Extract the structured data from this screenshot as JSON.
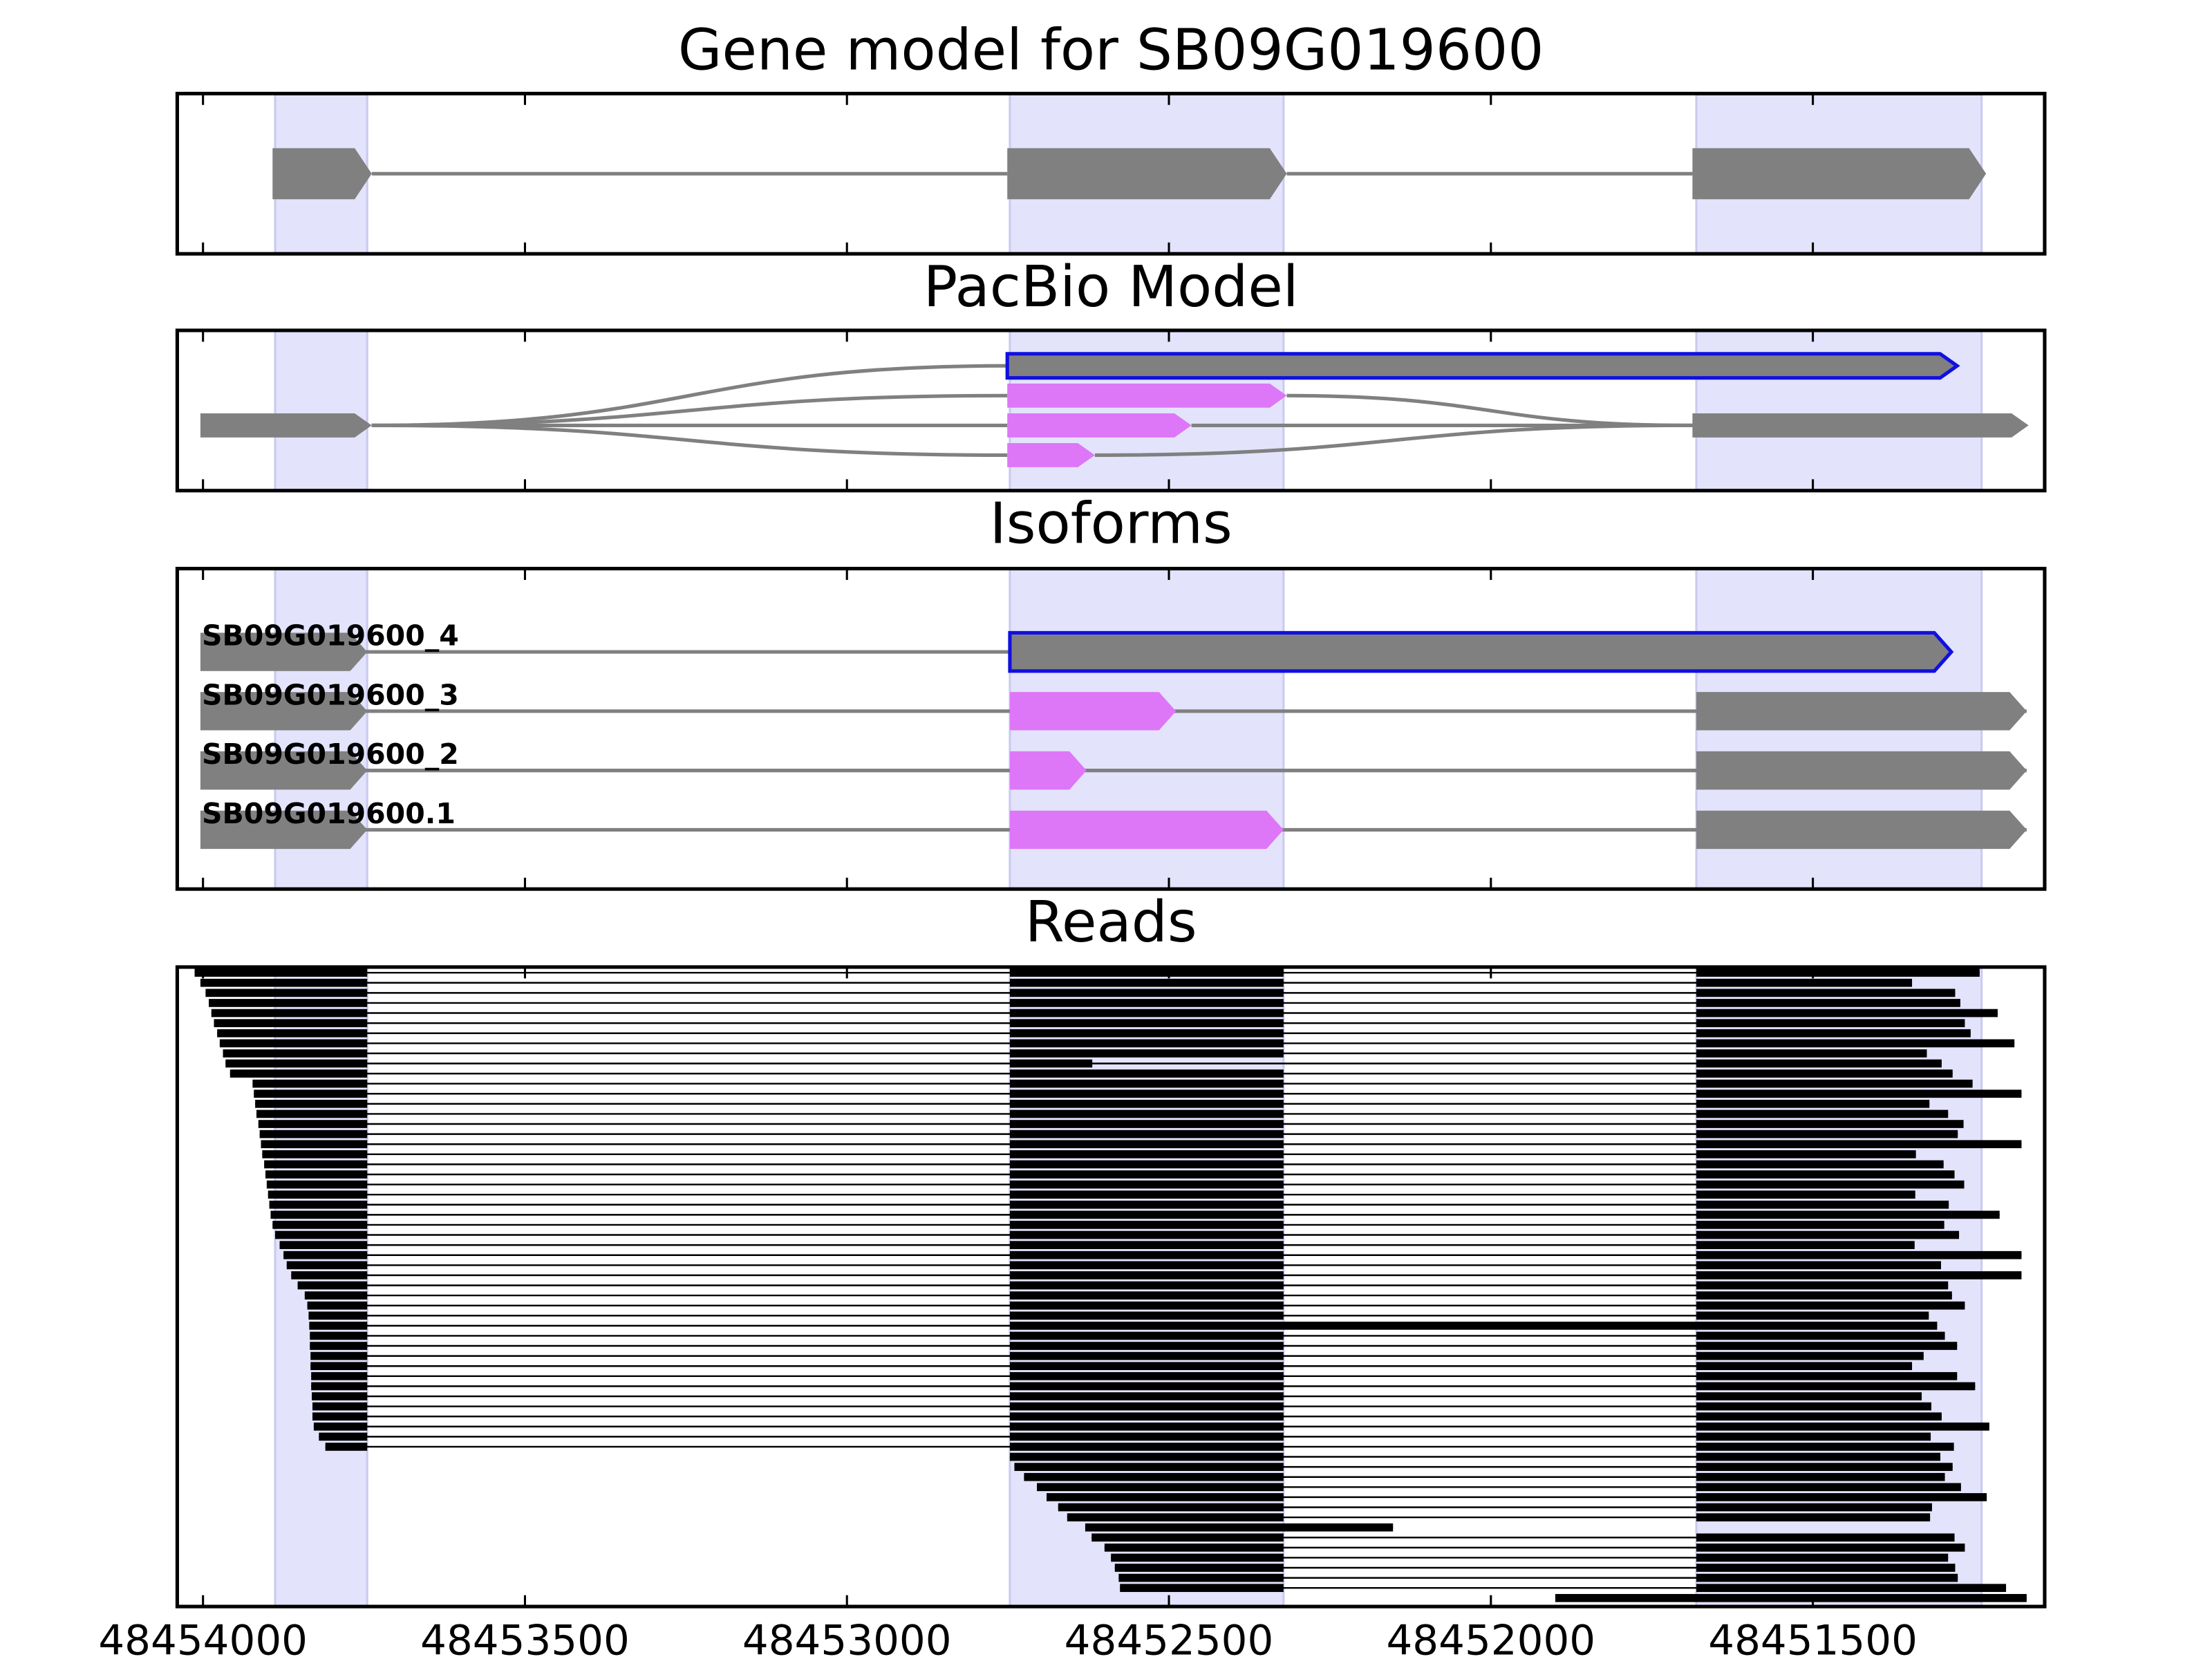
{
  "chart_data": [
    {
      "type": "gene-model",
      "title": "Gene model for SB09G019600",
      "xlim": [
        48454040,
        48451140
      ],
      "xticks": [
        48454000,
        48453500,
        48453000,
        48452500,
        48452000,
        48451500
      ],
      "shaded": [
        [
          48453888,
          48453745
        ],
        [
          48452747,
          48452322
        ],
        [
          48451681,
          48451238
        ]
      ],
      "transcripts": [
        {
          "exons": [
            [
              48453892,
              48453738
            ],
            [
              48452751,
              48452317
            ],
            [
              48451687,
              48451231
            ]
          ],
          "colors": [
            "#808080",
            "#808080",
            "#808080"
          ],
          "outlines": [
            null,
            null,
            null
          ]
        }
      ]
    },
    {
      "type": "pacbio",
      "title": "PacBio Model",
      "xlim": [
        48454040,
        48451140
      ],
      "xticks": [
        48454000,
        48453500,
        48453000,
        48452500,
        48452000,
        48451500
      ],
      "shaded": [
        [
          48453888,
          48453745
        ],
        [
          48452747,
          48452322
        ],
        [
          48451681,
          48451238
        ]
      ],
      "transcripts": [
        {
          "exons": [
            [
              48454004,
              48453738
            ],
            [
              48452751,
              48451276
            ]
          ],
          "colors": [
            "#808080",
            "#808080"
          ],
          "outlines": [
            null,
            "#1010e0"
          ]
        },
        {
          "exons": [
            [
              48454004,
              48453738
            ],
            [
              48452751,
              48452317
            ],
            [
              48451687,
              48451165
            ]
          ],
          "colors": [
            "#808080",
            "#dd77f7",
            "#808080"
          ],
          "outlines": [
            null,
            null,
            null
          ]
        },
        {
          "exons": [
            [
              48454004,
              48453738
            ],
            [
              48452751,
              48452465
            ],
            [
              48451687,
              48451165
            ]
          ],
          "colors": [
            "#808080",
            "#dd77f7",
            "#808080"
          ],
          "outlines": [
            null,
            null,
            null
          ]
        },
        {
          "exons": [
            [
              48454004,
              48453738
            ],
            [
              48452751,
              48452615
            ],
            [
              48451687,
              48451165
            ]
          ],
          "colors": [
            "#808080",
            "#dd77f7",
            "#808080"
          ],
          "outlines": [
            null,
            null,
            null
          ]
        }
      ]
    },
    {
      "type": "isoforms",
      "title": "Isoforms",
      "xlim": [
        48454040,
        48451140
      ],
      "xticks": [
        48454000,
        48453500,
        48453000,
        48452500,
        48452000,
        48451500
      ],
      "shaded": [
        [
          48453888,
          48453745
        ],
        [
          48452747,
          48452322
        ],
        [
          48451681,
          48451238
        ]
      ],
      "transcripts": [
        {
          "name": "SB09G019600_4",
          "exons": [
            [
              48454004,
              48453745
            ],
            [
              48452747,
              48451285
            ]
          ],
          "colors": [
            "#808080",
            "#808080"
          ],
          "outlines": [
            null,
            "#1010e0"
          ]
        },
        {
          "name": "SB09G019600_3",
          "exons": [
            [
              48454004,
              48453745
            ],
            [
              48452747,
              48452489
            ],
            [
              48451681,
              48451168
            ]
          ],
          "colors": [
            "#808080",
            "#dd77f7",
            "#808080"
          ],
          "outlines": [
            null,
            null,
            null
          ]
        },
        {
          "name": "SB09G019600_2",
          "exons": [
            [
              48454004,
              48453745
            ],
            [
              48452747,
              48452628
            ],
            [
              48451681,
              48451168
            ]
          ],
          "colors": [
            "#808080",
            "#dd77f7",
            "#808080"
          ],
          "outlines": [
            null,
            null,
            null
          ]
        },
        {
          "name": "SB09G019600.1",
          "exons": [
            [
              48454004,
              48453745
            ],
            [
              48452747,
              48452322
            ],
            [
              48451681,
              48451168
            ]
          ],
          "colors": [
            "#808080",
            "#dd77f7",
            "#808080"
          ],
          "outlines": [
            null,
            null,
            null
          ]
        }
      ]
    },
    {
      "type": "reads",
      "title": "Reads",
      "xlim": [
        48454040,
        48451140
      ],
      "xticks": [
        48454000,
        48453500,
        48453000,
        48452500,
        48452000,
        48451500
      ],
      "shaded": [
        [
          48453888,
          48453745
        ],
        [
          48452747,
          48452322
        ],
        [
          48451681,
          48451238
        ]
      ],
      "color": "#000000",
      "reads": [
        [
          48454013,
          48453745,
          48452747,
          48452322,
          48451681,
          48451241
        ],
        [
          48454004,
          48453745,
          48452747,
          48452322,
          48451681,
          48451346
        ],
        [
          48453996,
          48453745,
          48452747,
          48452322,
          48451681,
          48451279
        ],
        [
          48453991,
          48453745,
          48452747,
          48452322,
          48451681,
          48451271
        ],
        [
          48453987,
          48453745,
          48452747,
          48452322,
          48451681,
          48451213
        ],
        [
          48453983,
          48453745,
          48452747,
          48452322,
          48451681,
          48451264
        ],
        [
          48453978,
          48453745,
          48452747,
          48452322,
          48451681,
          48451255
        ],
        [
          48453974,
          48453745,
          48452747,
          48452322,
          48451681,
          48451187
        ],
        [
          48453969,
          48453745,
          48452747,
          48452322,
          48451681,
          48451323
        ],
        [
          48453965,
          48453745,
          48452747,
          48452619,
          48451681,
          48451300
        ],
        [
          48453958,
          48453745,
          48452747,
          48452322,
          48451681,
          48451283
        ],
        [
          48453923,
          48453745,
          48452747,
          48452322,
          48451681,
          48451252
        ],
        [
          48453921,
          48453745,
          48452747,
          48452322,
          48451681,
          48451176
        ],
        [
          48453919,
          48453745,
          48452747,
          48452322,
          48451681,
          48451319
        ],
        [
          48453917,
          48453745,
          48452747,
          48452322,
          48451681,
          48451290
        ],
        [
          48453914,
          48453745,
          48452747,
          48452322,
          48451681,
          48451266
        ],
        [
          48453912,
          48453745,
          48452747,
          48452322,
          48451681,
          48451275
        ],
        [
          48453910,
          48453745,
          48452747,
          48452322,
          48451681,
          48451176
        ],
        [
          48453908,
          48453745,
          48452747,
          48452322,
          48451681,
          48451340
        ],
        [
          48453905,
          48453745,
          48452747,
          48452322,
          48451681,
          48451297
        ],
        [
          48453903,
          48453745,
          48452747,
          48452322,
          48451681,
          48451280
        ],
        [
          48453901,
          48453745,
          48452747,
          48452322,
          48451681,
          48451265
        ],
        [
          48453899,
          48453745,
          48452747,
          48452322,
          48451681,
          48451341
        ],
        [
          48453897,
          48453745,
          48452747,
          48452322,
          48451681,
          48451289
        ],
        [
          48453895,
          48453745,
          48452747,
          48452322,
          48451681,
          48451210
        ],
        [
          48453892,
          48453745,
          48452747,
          48452322,
          48451681,
          48451296
        ],
        [
          48453888,
          48453745,
          48452747,
          48452322,
          48451681,
          48451273
        ],
        [
          48453881,
          48453745,
          48452747,
          48452322,
          48451681,
          48451342
        ],
        [
          48453875,
          48453745,
          48452747,
          48452322,
          48451681,
          48451176
        ],
        [
          48453870,
          48453745,
          48452747,
          48452322,
          48451681,
          48451301
        ],
        [
          48453863,
          48453745,
          48452747,
          48452322,
          48451681,
          48451176
        ],
        [
          48453853,
          48453745,
          48452747,
          48452322,
          48451681,
          48451290
        ],
        [
          48453842,
          48453745,
          48452747,
          48452322,
          48451681,
          48451284
        ],
        [
          48453838,
          48453745,
          48452747,
          48452322,
          48451681,
          48451264
        ],
        [
          48453836,
          48453745,
          48452747,
          48452322,
          48451681,
          48451320
        ],
        [
          48453835,
          48453745,
          48452747,
          48451307
        ],
        [
          48453834,
          48453745,
          48452747,
          48452322,
          48451681,
          48451295
        ],
        [
          48453834,
          48453745,
          48452747,
          48452322,
          48451681,
          48451276
        ],
        [
          48453833,
          48453745,
          48452747,
          48452322,
          48451681,
          48451328
        ],
        [
          48453833,
          48453745,
          48452747,
          48452322,
          48451681,
          48451346
        ],
        [
          48453832,
          48453745,
          48452747,
          48452322,
          48451681,
          48451276
        ],
        [
          48453832,
          48453745,
          48452747,
          48452322,
          48451681,
          48451248
        ],
        [
          48453831,
          48453745,
          48452747,
          48452322,
          48451681,
          48451331
        ],
        [
          48453830,
          48453745,
          48452747,
          48452322,
          48451681,
          48451316
        ],
        [
          48453830,
          48453745,
          48452747,
          48452322,
          48451681,
          48451300
        ],
        [
          48453828,
          48453745,
          48452747,
          48452322,
          48451681,
          48451226
        ],
        [
          48453820,
          48453745,
          48452747,
          48452322,
          48451681,
          48451317
        ],
        [
          48453810,
          48453745,
          48452747,
          48452322,
          48451681,
          48451281
        ],
        [
          48452747,
          48452322,
          48451681,
          48451302
        ],
        [
          48452740,
          48452322,
          48451681,
          48451283
        ],
        [
          48452725,
          48452322,
          48451681,
          48451295
        ],
        [
          48452705,
          48452322,
          48451681,
          48451270
        ],
        [
          48452690,
          48452322,
          48451681,
          48451230
        ],
        [
          48452672,
          48452322,
          48451681,
          48451315
        ],
        [
          48452658,
          48452322,
          48451681,
          48451318
        ],
        [
          48452630,
          48452152
        ],
        [
          48452620,
          48452322,
          48451681,
          48451280
        ],
        [
          48452600,
          48452322,
          48451681,
          48451264
        ],
        [
          48452590,
          48452322,
          48451681,
          48451290
        ],
        [
          48452584,
          48452322,
          48451681,
          48451279
        ],
        [
          48452578,
          48452322,
          48451681,
          48451275
        ],
        [
          48452576,
          48452322,
          48451681,
          48451200
        ],
        [
          48451900,
          48451168
        ]
      ]
    }
  ]
}
